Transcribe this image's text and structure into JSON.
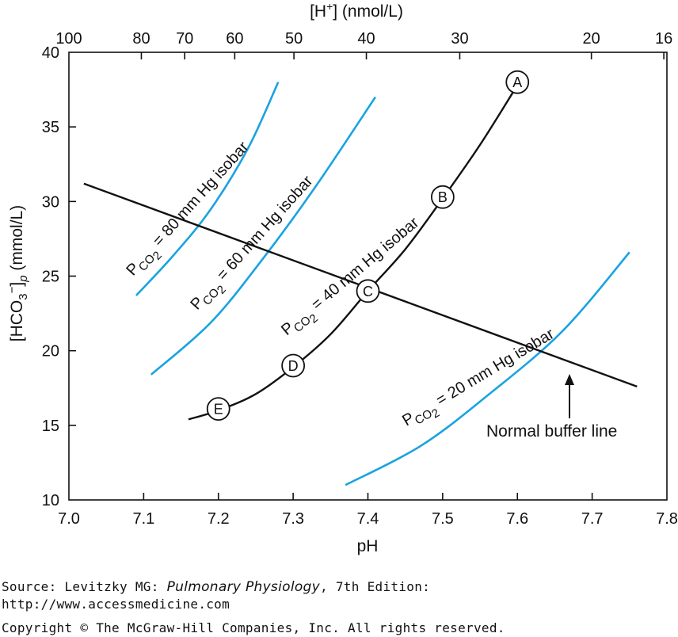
{
  "chart_data": {
    "type": "line",
    "x_axis": {
      "label": "pH",
      "range": [
        7.0,
        7.8
      ],
      "ticks": [
        "7.0",
        "7.1",
        "7.2",
        "7.3",
        "7.4",
        "7.5",
        "7.6",
        "7.7",
        "7.8"
      ]
    },
    "y_axis": {
      "label_main": "[HCO",
      "label_sub3": "3",
      "label_sup": "−",
      "label_close": "]",
      "label_sub_p": "p",
      "label_units": " (mmol/L)",
      "range": [
        10,
        40
      ],
      "ticks": [
        "10",
        "15",
        "20",
        "25",
        "30",
        "35",
        "40"
      ]
    },
    "top_axis": {
      "label_main": "[H",
      "label_sup": "+",
      "label_rest": "] (nmol/L)",
      "ticks": [
        "100",
        "80",
        "70",
        "60",
        "50",
        "40",
        "30",
        "20",
        "16"
      ]
    },
    "isobars": [
      {
        "name": "80",
        "label_value": "80 mm Hg isobar",
        "color": "#1aa3e0",
        "x": [
          7.09,
          7.14,
          7.19,
          7.24,
          7.28
        ],
        "y": [
          23.7,
          26.4,
          29.5,
          33.6,
          38.0
        ]
      },
      {
        "name": "60",
        "label_value": "60 mm Hg isobar",
        "color": "#1aa3e0",
        "x": [
          7.11,
          7.19,
          7.26,
          7.33,
          7.41
        ],
        "y": [
          18.4,
          21.9,
          26.2,
          31.0,
          37.0
        ]
      },
      {
        "name": "20",
        "label_value": "20 mm Hg isobar",
        "color": "#1aa3e0",
        "x": [
          7.37,
          7.47,
          7.56,
          7.66,
          7.75
        ],
        "y": [
          11.0,
          13.6,
          17.0,
          21.3,
          26.6
        ]
      }
    ],
    "isobar_40": {
      "label_value": "40 mm Hg isobar",
      "color": "#111111",
      "x": [
        7.16,
        7.2,
        7.25,
        7.3,
        7.35,
        7.4,
        7.45,
        7.5,
        7.55,
        7.6
      ],
      "y": [
        15.4,
        16.0,
        17.1,
        18.9,
        21.1,
        24.0,
        26.8,
        30.2,
        33.8,
        37.8
      ]
    },
    "points": [
      {
        "label": "A",
        "x": 7.6,
        "y": 38.0
      },
      {
        "label": "B",
        "x": 7.5,
        "y": 30.3
      },
      {
        "label": "C",
        "x": 7.4,
        "y": 24.0
      },
      {
        "label": "D",
        "x": 7.3,
        "y": 19.0
      },
      {
        "label": "E",
        "x": 7.2,
        "y": 16.1
      }
    ],
    "buffer_line": {
      "label": "Normal buffer line",
      "x": [
        7.02,
        7.76
      ],
      "y": [
        31.2,
        17.6
      ]
    },
    "pco2_prefix": "P",
    "pco2_sub": "CO",
    "pco2_sub2": "2",
    "pco2_eq": " = "
  },
  "footer": {
    "source_prefix": "Source: Levitzky MG: ",
    "source_title": "Pulmonary Physiology",
    "source_suffix": ", 7th Edition:",
    "url": "http://www.accessmedicine.com",
    "copyright": "Copyright © The McGraw-Hill Companies, Inc. All rights reserved."
  }
}
